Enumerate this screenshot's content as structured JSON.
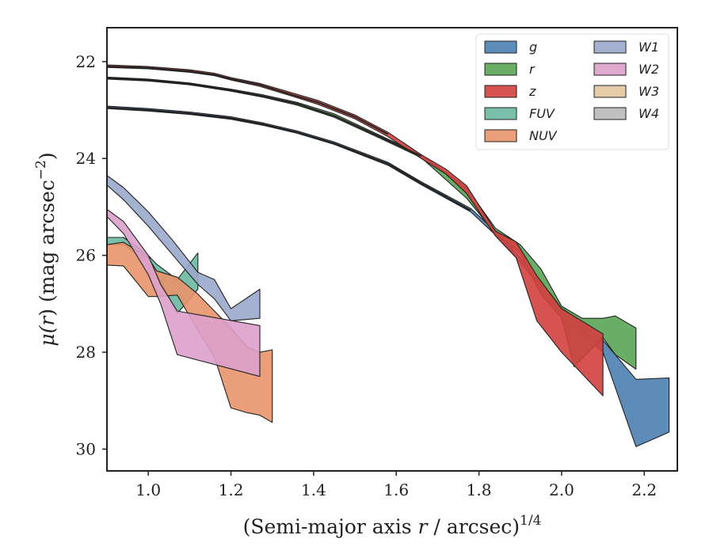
{
  "chart_data": {
    "type": "area",
    "xlabel_main": "(Semi-major axis ",
    "xlabel_var": "r",
    "xlabel_rest": " / arcsec)",
    "xlabel_sup": "1/4",
    "ylabel_main": "μ(",
    "ylabel_var": "r",
    "ylabel_rest": ") (mag arcsec",
    "ylabel_sup": "−2",
    "ylabel_end": ")",
    "xlim": [
      0.9,
      2.28
    ],
    "ylim": [
      30.45,
      21.3
    ],
    "xticks": [
      1.0,
      1.2,
      1.4,
      1.6,
      1.8,
      2.0,
      2.2
    ],
    "xtick_labels": [
      "1.0",
      "1.2",
      "1.4",
      "1.6",
      "1.8",
      "2.0",
      "2.2"
    ],
    "yticks": [
      22,
      24,
      26,
      28,
      30
    ],
    "ytick_labels": [
      "22",
      "24",
      "26",
      "28",
      "30"
    ],
    "legend_position": "top-right",
    "legend_columns": 2,
    "series": [
      {
        "name": "g",
        "color": "#4c7fb0",
        "upper": [
          [
            0.9,
            22.92
          ],
          [
            1.0,
            22.97
          ],
          [
            1.1,
            23.04
          ],
          [
            1.2,
            23.14
          ],
          [
            1.28,
            23.27
          ],
          [
            1.36,
            23.43
          ],
          [
            1.45,
            23.66
          ],
          [
            1.58,
            24.08
          ],
          [
            1.66,
            24.48
          ],
          [
            1.78,
            25.03
          ],
          [
            1.85,
            25.58
          ],
          [
            1.9,
            26.05
          ],
          [
            1.96,
            26.65
          ],
          [
            2.0,
            27.05
          ],
          [
            2.04,
            27.38
          ],
          [
            2.1,
            27.75
          ],
          [
            2.18,
            28.56
          ],
          [
            2.26,
            28.53
          ]
        ],
        "lower": [
          [
            0.9,
            22.97
          ],
          [
            1.0,
            23.02
          ],
          [
            1.1,
            23.09
          ],
          [
            1.2,
            23.19
          ],
          [
            1.28,
            23.32
          ],
          [
            1.36,
            23.48
          ],
          [
            1.45,
            23.71
          ],
          [
            1.58,
            24.14
          ],
          [
            1.66,
            24.54
          ],
          [
            1.78,
            25.1
          ],
          [
            1.85,
            25.66
          ],
          [
            1.9,
            26.14
          ],
          [
            1.96,
            26.78
          ],
          [
            2.0,
            27.18
          ],
          [
            2.04,
            27.55
          ],
          [
            2.1,
            28.0
          ],
          [
            2.18,
            29.95
          ],
          [
            2.26,
            29.65
          ]
        ]
      },
      {
        "name": "r",
        "color": "#5aa455",
        "upper": [
          [
            0.9,
            22.32
          ],
          [
            1.0,
            22.36
          ],
          [
            1.1,
            22.44
          ],
          [
            1.2,
            22.57
          ],
          [
            1.28,
            22.69
          ],
          [
            1.36,
            22.84
          ],
          [
            1.45,
            23.08
          ],
          [
            1.56,
            23.52
          ],
          [
            1.66,
            23.92
          ],
          [
            1.77,
            24.6
          ],
          [
            1.84,
            25.44
          ],
          [
            1.9,
            25.78
          ],
          [
            1.95,
            26.28
          ],
          [
            2.0,
            27.05
          ],
          [
            2.05,
            27.3
          ],
          [
            2.1,
            27.3
          ],
          [
            2.13,
            27.25
          ],
          [
            2.18,
            27.5
          ]
        ],
        "lower": [
          [
            0.9,
            22.36
          ],
          [
            1.0,
            22.4
          ],
          [
            1.1,
            22.48
          ],
          [
            1.2,
            22.61
          ],
          [
            1.28,
            22.74
          ],
          [
            1.36,
            22.9
          ],
          [
            1.45,
            23.15
          ],
          [
            1.56,
            23.58
          ],
          [
            1.66,
            23.98
          ],
          [
            1.77,
            24.82
          ],
          [
            1.84,
            25.55
          ],
          [
            1.9,
            25.95
          ],
          [
            1.95,
            26.8
          ],
          [
            2.0,
            27.3
          ],
          [
            2.03,
            28.3
          ],
          [
            2.1,
            27.7
          ],
          [
            2.13,
            28.05
          ],
          [
            2.18,
            28.35
          ]
        ]
      },
      {
        "name": "z",
        "color": "#d3403f",
        "upper": [
          [
            0.9,
            22.07
          ],
          [
            1.0,
            22.1
          ],
          [
            1.1,
            22.17
          ],
          [
            1.16,
            22.24
          ],
          [
            1.2,
            22.33
          ],
          [
            1.27,
            22.45
          ],
          [
            1.35,
            22.65
          ],
          [
            1.41,
            22.8
          ],
          [
            1.5,
            23.1
          ],
          [
            1.58,
            23.46
          ],
          [
            1.66,
            23.92
          ],
          [
            1.72,
            24.22
          ],
          [
            1.77,
            24.56
          ],
          [
            1.84,
            25.5
          ],
          [
            1.89,
            25.72
          ],
          [
            1.94,
            26.42
          ],
          [
            2.0,
            27.1
          ],
          [
            2.1,
            27.62
          ]
        ],
        "lower": [
          [
            0.9,
            22.12
          ],
          [
            1.0,
            22.15
          ],
          [
            1.1,
            22.22
          ],
          [
            1.16,
            22.29
          ],
          [
            1.2,
            22.38
          ],
          [
            1.27,
            22.51
          ],
          [
            1.35,
            22.72
          ],
          [
            1.41,
            22.88
          ],
          [
            1.5,
            23.18
          ],
          [
            1.58,
            23.55
          ],
          [
            1.66,
            24.0
          ],
          [
            1.72,
            24.32
          ],
          [
            1.77,
            24.72
          ],
          [
            1.84,
            25.6
          ],
          [
            1.89,
            26.05
          ],
          [
            1.94,
            27.35
          ],
          [
            2.0,
            28.0
          ],
          [
            2.1,
            28.9
          ]
        ]
      },
      {
        "name": "FUV",
        "color": "#6cb8a0",
        "upper": [
          [
            0.9,
            25.63
          ],
          [
            0.94,
            25.63
          ],
          [
            1.0,
            26.0
          ],
          [
            1.02,
            26.18
          ],
          [
            1.07,
            26.5
          ],
          [
            1.12,
            25.95
          ]
        ],
        "lower": [
          [
            0.9,
            25.78
          ],
          [
            0.94,
            25.78
          ],
          [
            1.0,
            26.15
          ],
          [
            1.02,
            26.38
          ],
          [
            1.07,
            27.2
          ],
          [
            1.12,
            26.7
          ]
        ]
      },
      {
        "name": "NUV",
        "color": "#e8936a",
        "upper": [
          [
            0.9,
            25.78
          ],
          [
            0.94,
            25.73
          ],
          [
            1.0,
            26.05
          ],
          [
            1.02,
            26.32
          ],
          [
            1.07,
            26.45
          ],
          [
            1.12,
            26.8
          ],
          [
            1.16,
            27.15
          ],
          [
            1.2,
            27.5
          ],
          [
            1.24,
            27.9
          ],
          [
            1.27,
            28.0
          ],
          [
            1.3,
            27.95
          ]
        ],
        "lower": [
          [
            0.9,
            26.2
          ],
          [
            0.94,
            26.22
          ],
          [
            1.0,
            26.85
          ],
          [
            1.02,
            26.85
          ],
          [
            1.07,
            26.82
          ],
          [
            1.12,
            27.55
          ],
          [
            1.16,
            28.1
          ],
          [
            1.2,
            29.15
          ],
          [
            1.24,
            29.25
          ],
          [
            1.27,
            29.3
          ],
          [
            1.3,
            29.45
          ]
        ]
      },
      {
        "name": "W1",
        "color": "#9aa9cc",
        "upper": [
          [
            0.9,
            24.35
          ],
          [
            0.94,
            24.6
          ],
          [
            1.0,
            25.1
          ],
          [
            1.06,
            25.7
          ],
          [
            1.12,
            26.35
          ],
          [
            1.16,
            26.5
          ],
          [
            1.2,
            27.1
          ],
          [
            1.27,
            26.7
          ]
        ],
        "lower": [
          [
            0.9,
            24.55
          ],
          [
            0.94,
            24.85
          ],
          [
            1.0,
            25.4
          ],
          [
            1.06,
            26.0
          ],
          [
            1.12,
            26.6
          ],
          [
            1.16,
            26.9
          ],
          [
            1.2,
            27.35
          ],
          [
            1.27,
            27.3
          ]
        ]
      },
      {
        "name": "W2",
        "color": "#dda0cb",
        "upper": [
          [
            0.9,
            25.05
          ],
          [
            0.94,
            25.3
          ],
          [
            1.0,
            26.0
          ],
          [
            1.03,
            26.6
          ],
          [
            1.07,
            27.15
          ],
          [
            1.27,
            27.45
          ]
        ],
        "lower": [
          [
            0.9,
            25.2
          ],
          [
            0.94,
            25.55
          ],
          [
            1.0,
            26.4
          ],
          [
            1.03,
            27.0
          ],
          [
            1.07,
            28.05
          ],
          [
            1.27,
            28.5
          ]
        ]
      },
      {
        "name": "W3",
        "color": "#e3c5a0",
        "upper": [],
        "lower": []
      },
      {
        "name": "W4",
        "color": "#b9b9b9",
        "upper": [],
        "lower": []
      }
    ],
    "median_lines": [
      [
        [
          0.9,
          22.95
        ],
        [
          1.0,
          23.0
        ],
        [
          1.1,
          23.07
        ],
        [
          1.2,
          23.17
        ],
        [
          1.28,
          23.3
        ],
        [
          1.36,
          23.46
        ],
        [
          1.45,
          23.69
        ],
        [
          1.58,
          24.11
        ],
        [
          1.66,
          24.51
        ],
        [
          1.78,
          25.07
        ]
      ],
      [
        [
          0.9,
          22.34
        ],
        [
          1.0,
          22.38
        ],
        [
          1.1,
          22.46
        ],
        [
          1.2,
          22.59
        ],
        [
          1.28,
          22.72
        ],
        [
          1.36,
          22.87
        ],
        [
          1.45,
          23.12
        ],
        [
          1.56,
          23.55
        ],
        [
          1.66,
          23.95
        ]
      ],
      [
        [
          0.9,
          22.1
        ],
        [
          1.0,
          22.13
        ],
        [
          1.1,
          22.2
        ],
        [
          1.16,
          22.27
        ],
        [
          1.2,
          22.36
        ],
        [
          1.27,
          22.48
        ],
        [
          1.35,
          22.69
        ],
        [
          1.41,
          22.84
        ],
        [
          1.5,
          23.14
        ],
        [
          1.58,
          23.5
        ]
      ]
    ]
  }
}
